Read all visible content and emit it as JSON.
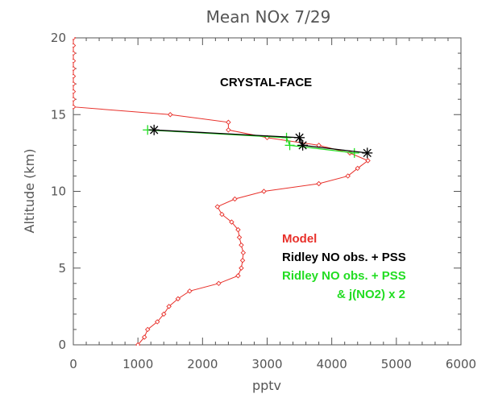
{
  "chart_data": {
    "type": "line",
    "title": "Mean NOx 7/29",
    "xlabel": "pptv",
    "ylabel": "Altitude (km)",
    "xlim": [
      0,
      6000
    ],
    "ylim": [
      0,
      20
    ],
    "xticks": [
      "0",
      "1000",
      "2000",
      "3000",
      "4000",
      "5000",
      "6000"
    ],
    "yticks": [
      "0",
      "5",
      "10",
      "15",
      "20"
    ],
    "grid": false,
    "annotation": "CRYSTAL-FACE",
    "legend_position": "right",
    "series": [
      {
        "name": "Model",
        "color": "#e8302a",
        "marker": "diamond",
        "points": [
          [
            1000,
            0
          ],
          [
            1100,
            0.5
          ],
          [
            1150,
            1.0
          ],
          [
            1300,
            1.5
          ],
          [
            1400,
            2.0
          ],
          [
            1480,
            2.5
          ],
          [
            1620,
            3.0
          ],
          [
            1800,
            3.5
          ],
          [
            2250,
            4.0
          ],
          [
            2550,
            4.5
          ],
          [
            2600,
            5.0
          ],
          [
            2620,
            5.5
          ],
          [
            2630,
            6.0
          ],
          [
            2600,
            6.5
          ],
          [
            2570,
            7.0
          ],
          [
            2550,
            7.5
          ],
          [
            2450,
            8.0
          ],
          [
            2300,
            8.5
          ],
          [
            2230,
            9.0
          ],
          [
            2500,
            9.5
          ],
          [
            2950,
            10.0
          ],
          [
            3800,
            10.5
          ],
          [
            4250,
            11.0
          ],
          [
            4400,
            11.5
          ],
          [
            4560,
            12.0
          ],
          [
            4280,
            12.5
          ],
          [
            3800,
            13.0
          ],
          [
            3000,
            13.5
          ],
          [
            2400,
            14.0
          ],
          [
            2400,
            14.5
          ],
          [
            1500,
            15.0
          ],
          [
            0,
            15.5
          ],
          [
            0,
            16.0
          ],
          [
            0,
            16.5
          ],
          [
            0,
            17.0
          ],
          [
            0,
            17.5
          ],
          [
            0,
            18.0
          ],
          [
            0,
            18.5
          ],
          [
            0,
            19.0
          ],
          [
            0,
            19.5
          ],
          [
            0,
            20.0
          ]
        ]
      },
      {
        "name": "Ridley NO obs. + PSS",
        "color": "#000000",
        "marker": "asterisk",
        "points": [
          [
            1250,
            14.0
          ],
          [
            3500,
            13.5
          ],
          [
            3550,
            13.0
          ],
          [
            4550,
            12.5
          ]
        ]
      },
      {
        "name": "Ridley NO obs. + PSS & j(NO2) x 2",
        "color": "#22dd22",
        "marker": "plus",
        "points": [
          [
            1150,
            14.0
          ],
          [
            3300,
            13.5
          ],
          [
            3350,
            13.0
          ],
          [
            4350,
            12.5
          ]
        ]
      }
    ],
    "legend": {
      "model": "Model",
      "black": "Ridley NO obs. + PSS",
      "green_line1": "Ridley NO obs. + PSS",
      "green_line2": "& j(NO2) x 2"
    }
  }
}
